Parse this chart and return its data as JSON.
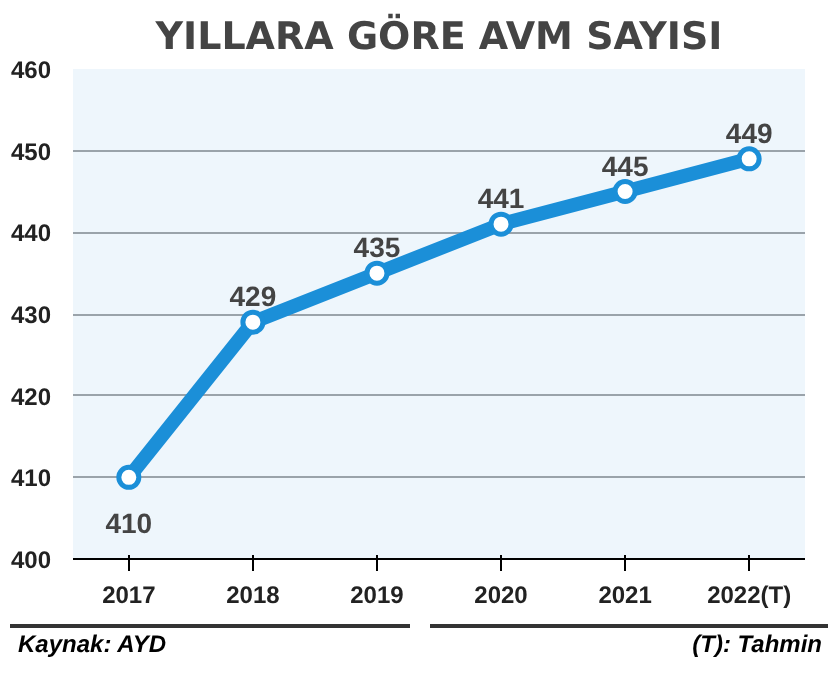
{
  "chart_data": {
    "type": "line",
    "title": "YILLARA GÖRE AVM SAYISI",
    "categories": [
      "2017",
      "2018",
      "2019",
      "2020",
      "2021",
      "2022(T)"
    ],
    "series": [
      {
        "color": "#1b8fd8",
        "values": [
          410,
          429,
          435,
          441,
          445,
          449
        ]
      }
    ],
    "ylim": [
      400,
      460
    ],
    "yticks": [
      400,
      410,
      420,
      430,
      440,
      450,
      460
    ],
    "grid": "y",
    "marker": "circle",
    "line_style": "solid",
    "data_labels": true,
    "annotations": [
      "Kaynak: AYD",
      "(T): Tahmin"
    ]
  }
}
